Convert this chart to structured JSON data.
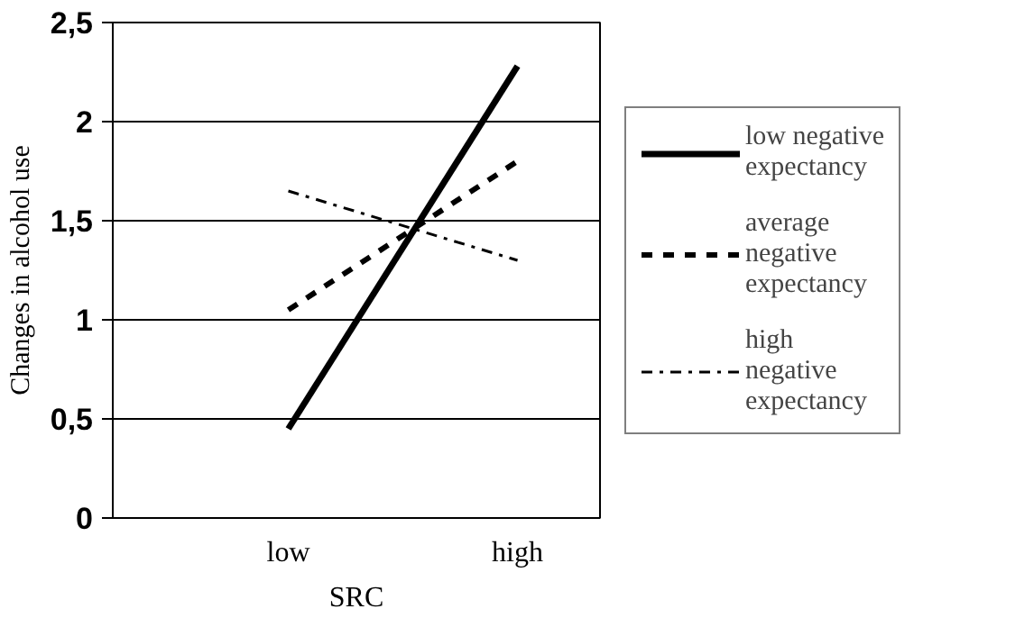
{
  "chart_data": {
    "type": "line",
    "xlabel": "SRC",
    "ylabel": "Changes in alcohol use",
    "categories": [
      "low",
      "high"
    ],
    "series": [
      {
        "name": "low negative expectancy",
        "color": "#000000",
        "values": [
          0.45,
          2.28
        ],
        "line_style": "solid"
      },
      {
        "name": "average negative expectancy",
        "color": "#000000",
        "values": [
          1.05,
          1.8
        ],
        "line_style": "dashed"
      },
      {
        "name": "high negative expectancy",
        "color": "#000000",
        "values": [
          1.65,
          1.3
        ],
        "line_style": "dashdot"
      }
    ],
    "ylim": [
      0,
      2.5
    ],
    "yticks": [
      0,
      {
        "value": 0.5,
        "label": "0,5"
      },
      1,
      {
        "value": 1.5,
        "label": "1,5"
      },
      2,
      {
        "value": 2.5,
        "label": "2,5"
      }
    ],
    "grid": "y",
    "legend": "right",
    "marker": "none"
  }
}
